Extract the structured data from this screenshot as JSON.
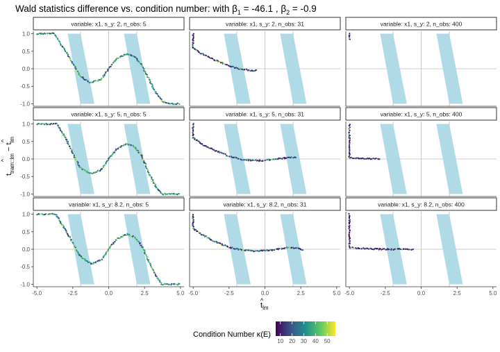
{
  "title": {
    "prefix": "Wald statistics difference vs. condition number: with β",
    "b1_sub": "1",
    "b1_mid": " = -46.1 , β",
    "b2_sub": "2",
    "b2_end": " = -0.9"
  },
  "ylabel": {
    "main": "t",
    "sub": "tram::lm",
    "minus": " − t",
    "sub2": "lm"
  },
  "xlabel": {
    "main": "t",
    "sub": "lm"
  },
  "legend": {
    "title": "Condition Number κ(E)",
    "ticks": [
      "10",
      "20",
      "30",
      "40",
      "50"
    ],
    "range": [
      6,
      57
    ],
    "tick_values": [
      10,
      20,
      30,
      40,
      50
    ],
    "colors": [
      "#440154",
      "#3b528b",
      "#21908c",
      "#5dc863",
      "#fde725"
    ]
  },
  "chart_data": {
    "type": "scatter",
    "x_ticks": [
      "-5.0",
      "-2.5",
      "0.0",
      "2.5",
      "5.0"
    ],
    "x_tick_values": [
      -5,
      -2.5,
      0,
      2.5,
      5
    ],
    "y_ticks": [
      "1.0",
      "0.5",
      "0.0",
      "-0.5",
      "-1.0"
    ],
    "y_tick_values": [
      1,
      0.5,
      0,
      -0.5,
      -1
    ],
    "xlim": [
      -5.25,
      5.25
    ],
    "ylim": [
      -1.07,
      1.07
    ],
    "reference_lines": {
      "vertical": [
        -1.96,
        0,
        1.96
      ],
      "horizontal": [
        0
      ]
    },
    "shaded_wedges": [
      {
        "x_top": -1.96,
        "x_bottom_left": -1.96,
        "x_bottom_right": -1.0,
        "color": "#add8e6"
      },
      {
        "x_top": 1.96,
        "x_bottom_left": 1.96,
        "x_bottom_right": 2.9,
        "color": "#add8e6"
      }
    ],
    "panels": [
      {
        "label": "variable: x1, s_y: 2, n_obs: 5",
        "curve": [
          [
            -5,
            1
          ],
          [
            -3.8,
            1
          ],
          [
            -3,
            0.5
          ],
          [
            -2,
            -0.2
          ],
          [
            -1.3,
            -0.4
          ],
          [
            -0.5,
            -0.3
          ],
          [
            0,
            0
          ],
          [
            0.6,
            0.3
          ],
          [
            1.3,
            0.43
          ],
          [
            1.8,
            0.35
          ],
          [
            2.3,
            0.1
          ],
          [
            2.8,
            -0.3
          ],
          [
            3.3,
            -0.7
          ],
          [
            3.8,
            -0.95
          ],
          [
            4.2,
            -1
          ],
          [
            5,
            -1
          ]
        ]
      },
      {
        "label": "variable: x1, s_y: 2, n_obs: 31",
        "curve": [
          [
            -5,
            1
          ],
          [
            -5,
            0.6
          ],
          [
            -4.5,
            0.45
          ],
          [
            -3.5,
            0.25
          ],
          [
            -2.5,
            0.08
          ],
          [
            -1.8,
            0
          ],
          [
            -1,
            -0.05
          ],
          [
            -0.5,
            -0.05
          ]
        ]
      },
      {
        "label": "variable: x1, s_y: 2, n_obs: 400",
        "curve": [
          [
            -5,
            1
          ],
          [
            -5,
            0.8
          ]
        ]
      },
      {
        "label": "variable: x1, s_y: 5, n_obs: 5",
        "curve": [
          [
            -5,
            1
          ],
          [
            -3.6,
            1
          ],
          [
            -3,
            0.6
          ],
          [
            -2,
            -0.25
          ],
          [
            -1.2,
            -0.42
          ],
          [
            -0.5,
            -0.3
          ],
          [
            0,
            0
          ],
          [
            0.6,
            0.3
          ],
          [
            1.3,
            0.43
          ],
          [
            1.8,
            0.35
          ],
          [
            2.3,
            0.1
          ],
          [
            2.8,
            -0.4
          ],
          [
            3.3,
            -0.8
          ],
          [
            3.7,
            -1
          ],
          [
            5,
            -1
          ]
        ]
      },
      {
        "label": "variable: x1, s_y: 5, n_obs: 31",
        "curve": [
          [
            -5,
            1
          ],
          [
            -5,
            0.6
          ],
          [
            -4.3,
            0.4
          ],
          [
            -3.5,
            0.25
          ],
          [
            -2.5,
            0.08
          ],
          [
            -1.5,
            -0.02
          ],
          [
            -0.5,
            -0.05
          ],
          [
            0.5,
            -0.02
          ],
          [
            1.5,
            0.03
          ],
          [
            2.2,
            0.05
          ]
        ]
      },
      {
        "label": "variable: x1, s_y: 5, n_obs: 400",
        "curve": [
          [
            -5,
            1
          ],
          [
            -5,
            0.04
          ],
          [
            -4.5,
            0.03
          ],
          [
            -3.5,
            0.01
          ],
          [
            -2.8,
            0.0
          ]
        ]
      },
      {
        "label": "variable: x1, s_y: 8.2, n_obs: 5",
        "curve": [
          [
            -5,
            1
          ],
          [
            -3.7,
            1
          ],
          [
            -3,
            0.55
          ],
          [
            -2,
            -0.2
          ],
          [
            -1.2,
            -0.42
          ],
          [
            -0.5,
            -0.3
          ],
          [
            0,
            0
          ],
          [
            0.6,
            0.3
          ],
          [
            1.3,
            0.43
          ],
          [
            1.8,
            0.35
          ],
          [
            2.3,
            0.1
          ],
          [
            2.8,
            -0.35
          ],
          [
            3.3,
            -0.75
          ],
          [
            3.7,
            -1
          ],
          [
            5,
            -1
          ]
        ]
      },
      {
        "label": "variable: x1, s_y: 8.2, n_obs: 31",
        "curve": [
          [
            -5,
            1
          ],
          [
            -5,
            0.6
          ],
          [
            -4.5,
            0.45
          ],
          [
            -3.5,
            0.22
          ],
          [
            -2.5,
            0.06
          ],
          [
            -1.5,
            -0.03
          ],
          [
            -0.5,
            -0.05
          ],
          [
            0.5,
            -0.02
          ],
          [
            1.5,
            0.04
          ],
          [
            2.2,
            0.04
          ],
          [
            2.7,
            -0.03
          ]
        ]
      },
      {
        "label": "variable: x1, s_y: 8.2, n_obs: 400",
        "curve": [
          [
            -5,
            1
          ],
          [
            -5,
            0.05
          ],
          [
            -4.5,
            0.03
          ],
          [
            -3.5,
            0.01
          ],
          [
            -2.5,
            0.0
          ],
          [
            -1.5,
            0.0
          ],
          [
            -0.5,
            -0.01
          ]
        ]
      }
    ]
  }
}
